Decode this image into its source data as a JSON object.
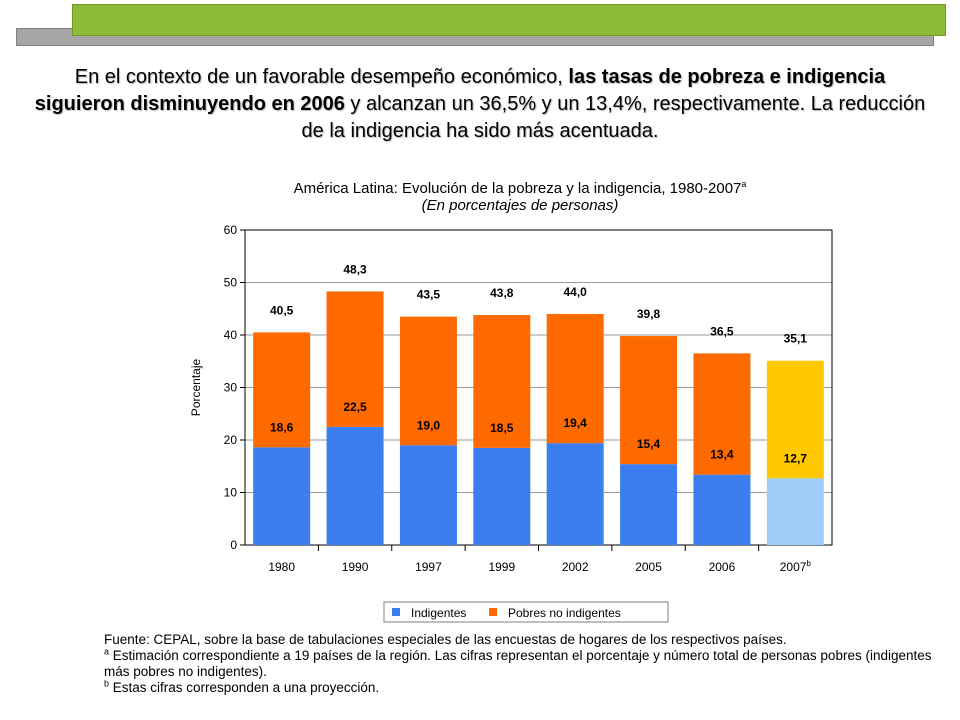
{
  "headline": {
    "part1": "En el contexto de un favorable desempeño económico, ",
    "bold": "las tasas de pobreza e indigencia siguieron disminuyendo en 2006",
    "part2": " y alcanzan un 36,5% y un 13,4%, respectivamente. La reducción de la indigencia ha sido más acentuada."
  },
  "chart_data": {
    "type": "bar",
    "stacked": true,
    "title": "América Latina: Evolución de la pobreza y la indigencia, 1980-2007",
    "title_mark": "a",
    "subtitle": "(En porcentajes de personas)",
    "ylabel": "Porcentaje",
    "ylim": [
      0,
      60
    ],
    "yticks": [
      0,
      10,
      20,
      30,
      40,
      50,
      60
    ],
    "categories": [
      "1980",
      "1990",
      "1997",
      "1999",
      "2002",
      "2005",
      "2006",
      "2007"
    ],
    "category_marks": [
      "",
      "",
      "",
      "",
      "",
      "",
      "",
      "b"
    ],
    "total_labels": [
      "40,5",
      "48,3",
      "43,5",
      "43,8",
      "44,0",
      "39,8",
      "36,5",
      "35,1"
    ],
    "indigent_labels": [
      "18,6",
      "22,5",
      "19,0",
      "18,5",
      "19,4",
      "15,4",
      "13,4",
      "12,7"
    ],
    "series": [
      {
        "name": "Indigentes",
        "values": [
          18.6,
          22.5,
          19.0,
          18.5,
          19.4,
          15.4,
          13.4,
          12.7
        ],
        "color": "#3c7df0",
        "projection_color": "#9fcdfa"
      },
      {
        "name": "Pobres no indigentes",
        "values": [
          21.9,
          25.8,
          24.5,
          25.3,
          24.6,
          24.4,
          23.1,
          22.4
        ],
        "color": "#ff6a00",
        "projection_color": "#ffc800"
      }
    ],
    "legend": {
      "position": "bottom",
      "items": [
        "Indigentes",
        "Pobres no indigentes"
      ]
    }
  },
  "colors": {
    "frame": "#000000",
    "grid": "#9a9a9a"
  },
  "source": {
    "line1": "Fuente: CEPAL, sobre la base de tabulaciones especiales de las encuestas de hogares de los respectivos países.",
    "note_a_mark": "a",
    "note_a": " Estimación correspondiente a 19 países de la región. Las cifras representan el porcentaje y número total de personas pobres (indigentes más pobres no indigentes).",
    "note_b_mark": "b",
    "note_b": " Estas cifras corresponden a una proyección."
  }
}
